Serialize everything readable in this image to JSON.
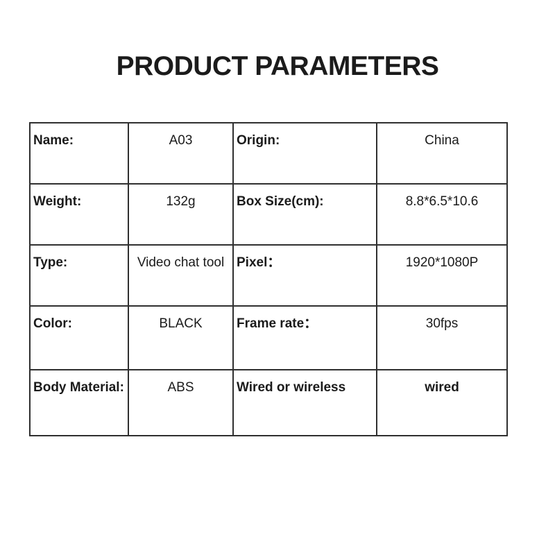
{
  "title": "PRODUCT PARAMETERS",
  "table": {
    "rows": [
      {
        "label1": "Name:",
        "value1": "A03",
        "label2": "Origin:",
        "value2": "China"
      },
      {
        "label1": "Weight:",
        "value1": "132g",
        "label2": "Box Size(cm):",
        "value2": "8.8*6.5*10.6"
      },
      {
        "label1": "Type:",
        "value1": "Video chat tool",
        "label2": "Pixel：",
        "value2": "1920*1080P"
      },
      {
        "label1": "Color:",
        "value1": "BLACK",
        "label2": "Frame rate：",
        "value2": "30fps"
      },
      {
        "label1": "Body Material:",
        "value1": "ABS",
        "label2": "Wired or wireless",
        "value2": "wired"
      }
    ]
  },
  "colors": {
    "text": "#1b1b1b",
    "border": "#2f2f2f",
    "background": "#ffffff"
  }
}
